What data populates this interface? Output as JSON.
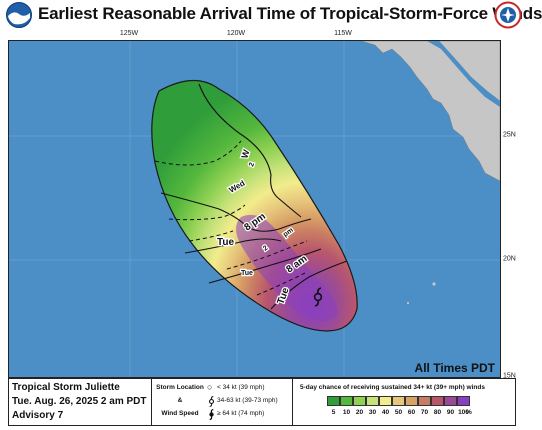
{
  "header": {
    "title": "Earliest Reasonable Arrival Time of Tropical-Storm-Force Winds"
  },
  "map": {
    "longitude_labels": [
      "125W",
      "120W",
      "115W"
    ],
    "latitude_labels": [
      "25N",
      "20N",
      "15N"
    ],
    "time_labels": [
      "Tue 8 am",
      "Tue 8 pm",
      "Wed 8 am",
      "Tue 2 pm",
      "Tue 2 am",
      "Wed 2 am",
      "Wed 2 pm"
    ],
    "all_times_note": "All Times PDT",
    "storm_symbol": "tropical-storm-icon"
  },
  "footer": {
    "storm_name": "Tropical Storm Juliette",
    "date": "Tue. Aug. 26, 2025  2 am PDT",
    "advisory": "Advisory 7",
    "legend_side_labels": [
      "Storm Location",
      "&",
      "Wind Speed"
    ],
    "legend_items": [
      {
        "symbol": "circle-icon",
        "text": "< 34 kt (39 mph)"
      },
      {
        "symbol": "tropical-storm-icon",
        "text": "34-63 kt (39-73 mph)"
      },
      {
        "symbol": "hurricane-icon",
        "text": "≥ 64 kt (74 mph)"
      }
    ],
    "probability_title": "5-day chance of receiving sustained 34+ kt (39+ mph) winds",
    "probability_levels": [
      "5",
      "10",
      "20",
      "30",
      "40",
      "50",
      "60",
      "70",
      "80",
      "90",
      "100"
    ],
    "probability_colors": [
      "#2e9d3a",
      "#55b83d",
      "#8fd153",
      "#c6e27a",
      "#f2ec8c",
      "#e7c77c",
      "#d9a368",
      "#c97c64",
      "#b8566d",
      "#9a4b98",
      "#8a3fc0"
    ],
    "percent_sign": "%"
  },
  "colors": {
    "ocean": "#4c8fc6",
    "land": "#c6c6c6"
  }
}
